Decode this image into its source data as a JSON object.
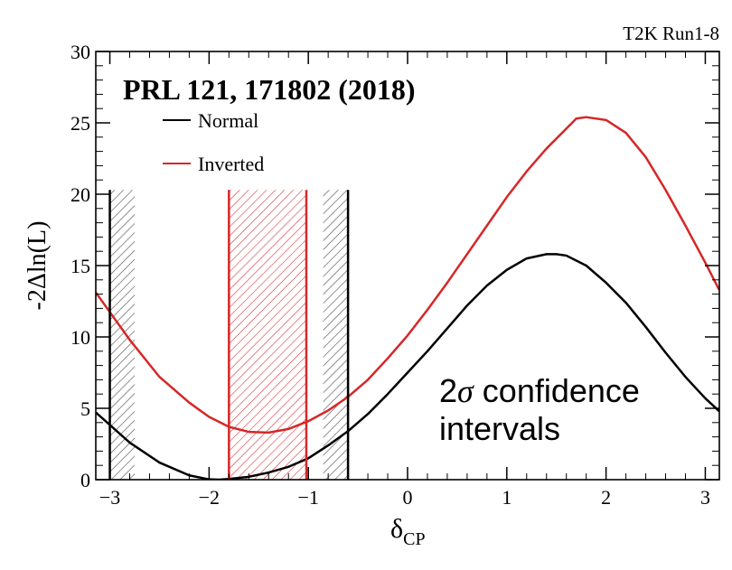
{
  "chart_data": {
    "type": "line",
    "experiment_label": "T2K Run1-8",
    "reference": "PRL 121, 171802 (2018)",
    "annotation": "2σ confidence intervals",
    "annotation_lines": [
      "2",
      "σ",
      " confidence",
      "intervals"
    ],
    "xlabel": "δ",
    "xlabel_sub": "CP",
    "ylabel": "-2Δln(L)",
    "xlim": [
      -3.1416,
      3.1416
    ],
    "ylim": [
      0,
      30
    ],
    "xticks": [
      -3,
      -2,
      -1,
      0,
      1,
      2,
      3
    ],
    "xtick_labels": [
      "−3",
      "−2",
      "−1",
      "0",
      "1",
      "2",
      "3"
    ],
    "yticks": [
      0,
      5,
      10,
      15,
      20,
      25,
      30
    ],
    "ytick_labels": [
      "0",
      "5",
      "10",
      "15",
      "20",
      "25",
      "30"
    ],
    "legend_placement": "top-left",
    "grid": false,
    "series": [
      {
        "name": "Normal",
        "color": "#000000",
        "x": [
          -3.14,
          -2.8,
          -2.5,
          -2.2,
          -2.0,
          -1.9,
          -1.8,
          -1.6,
          -1.4,
          -1.2,
          -1.0,
          -0.8,
          -0.6,
          -0.4,
          -0.2,
          0.0,
          0.2,
          0.4,
          0.6,
          0.8,
          1.0,
          1.2,
          1.4,
          1.5,
          1.6,
          1.8,
          2.0,
          2.2,
          2.4,
          2.6,
          2.8,
          3.0,
          3.14
        ],
        "y": [
          4.7,
          2.6,
          1.2,
          0.3,
          0.02,
          0.0,
          0.05,
          0.2,
          0.5,
          0.9,
          1.5,
          2.4,
          3.4,
          4.6,
          6.0,
          7.5,
          9.0,
          10.6,
          12.2,
          13.6,
          14.7,
          15.5,
          15.8,
          15.8,
          15.7,
          15.0,
          13.8,
          12.4,
          10.7,
          8.9,
          7.2,
          5.7,
          4.8
        ]
      },
      {
        "name": "Inverted",
        "color": "#d62728",
        "x": [
          -3.14,
          -2.8,
          -2.5,
          -2.2,
          -2.0,
          -1.8,
          -1.6,
          -1.4,
          -1.2,
          -1.0,
          -0.8,
          -0.6,
          -0.4,
          -0.2,
          0.0,
          0.2,
          0.4,
          0.6,
          0.8,
          1.0,
          1.2,
          1.4,
          1.6,
          1.7,
          1.8,
          2.0,
          2.2,
          2.4,
          2.6,
          2.8,
          3.0,
          3.14
        ],
        "y": [
          13.1,
          9.8,
          7.2,
          5.4,
          4.4,
          3.7,
          3.35,
          3.3,
          3.55,
          4.1,
          4.85,
          5.8,
          7.0,
          8.5,
          10.1,
          11.9,
          13.8,
          15.8,
          17.8,
          19.8,
          21.6,
          23.2,
          24.6,
          25.3,
          25.4,
          25.2,
          24.3,
          22.6,
          20.3,
          17.8,
          15.2,
          13.3
        ]
      }
    ],
    "intervals": [
      {
        "series": "Normal",
        "from": -3.14,
        "to": -3.0,
        "hatched": false,
        "color": "#000000",
        "y_top": 20.3
      },
      {
        "series": "Normal",
        "from": -3.0,
        "to": -2.75,
        "hatched": true,
        "color": "#555555",
        "y_top": 20.3
      },
      {
        "series": "Normal",
        "from": -0.85,
        "to": -0.6,
        "hatched": true,
        "color": "#555555",
        "y_top": 20.3
      },
      {
        "series": "Inverted",
        "from": -1.8,
        "to": -1.02,
        "hatched": true,
        "color": "#d62728",
        "y_top": 20.3
      }
    ],
    "interval_boundaries": [
      {
        "x": -3.0,
        "color": "#000000"
      },
      {
        "x": -0.6,
        "color": "#000000"
      },
      {
        "x": -1.8,
        "color": "#d62728"
      },
      {
        "x": -1.02,
        "color": "#d62728"
      }
    ]
  }
}
